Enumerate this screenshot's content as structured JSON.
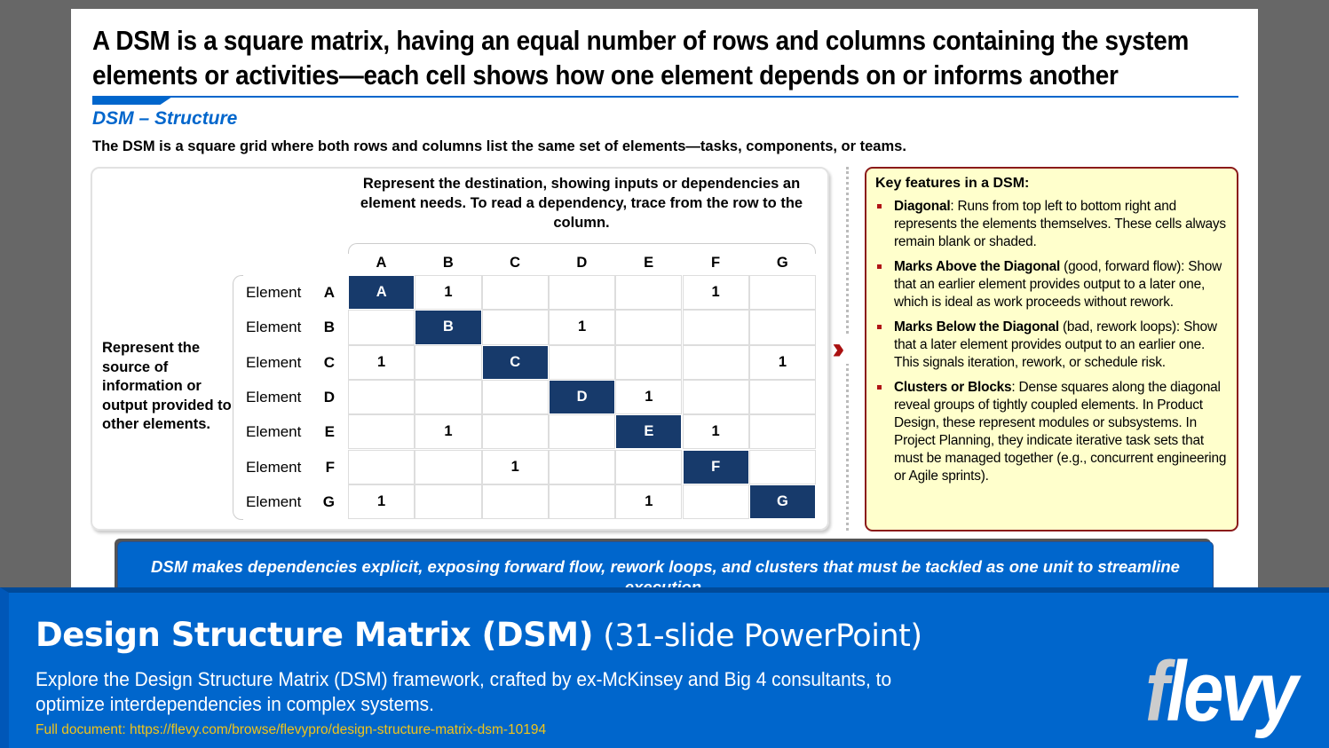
{
  "slide": {
    "title": "A DSM is a square matrix, having an equal number of rows and columns containing the system elements or activities—each cell shows how one element depends on or informs another",
    "subtitle": "DSM – Structure",
    "description": "The DSM is a square grid where both rows and columns list the same set of elements—tasks, components, or teams.",
    "destination_note": "Represent the destination, showing inputs or dependencies an element needs. To read a dependency, trace from the row to the column.",
    "source_note": "Represent the source of information or output provided to other elements.",
    "matrix": {
      "columns": [
        "A",
        "B",
        "C",
        "D",
        "E",
        "F",
        "G"
      ],
      "row_prefix": "Element",
      "rows": [
        {
          "label": "A",
          "cells": [
            "A",
            "1",
            "",
            "",
            "",
            "1",
            ""
          ]
        },
        {
          "label": "B",
          "cells": [
            "",
            "B",
            "",
            "1",
            "",
            "",
            ""
          ]
        },
        {
          "label": "C",
          "cells": [
            "1",
            "",
            "C",
            "",
            "",
            "",
            "1"
          ]
        },
        {
          "label": "D",
          "cells": [
            "",
            "",
            "",
            "D",
            "1",
            "",
            ""
          ]
        },
        {
          "label": "E",
          "cells": [
            "",
            "1",
            "",
            "",
            "E",
            "1",
            ""
          ]
        },
        {
          "label": "F",
          "cells": [
            "",
            "",
            "1",
            "",
            "",
            "F",
            ""
          ]
        },
        {
          "label": "G",
          "cells": [
            "1",
            "",
            "",
            "",
            "1",
            "",
            "G"
          ]
        }
      ]
    },
    "key_features": {
      "heading": "Key features in a DSM:",
      "items": [
        {
          "bold": "Diagonal",
          "text": ": Runs from top left to bottom right and represents the elements themselves. These cells always remain blank or shaded."
        },
        {
          "bold": "Marks Above the Diagonal",
          "text": " (good, forward flow): Show that an earlier element provides output to a later one, which is ideal as work proceeds without rework."
        },
        {
          "bold": "Marks Below the Diagonal",
          "text": " (bad, rework loops): Show that a later element provides output to an earlier one. This signals iteration, rework, or schedule risk."
        },
        {
          "bold": "Clusters or Blocks",
          "text": ": Dense squares along the diagonal reveal groups of tightly coupled elements. In Product Design, these represent modules or subsystems. In Project Planning, they indicate iterative task sets that must be managed together (e.g., concurrent engineering or Agile sprints)."
        }
      ]
    },
    "callout": "DSM makes dependencies explicit, exposing forward flow, rework loops, and clusters that must be tackled as one unit to streamline execution."
  },
  "banner": {
    "title": "Design Structure Matrix (DSM)",
    "title_suffix": "(31-slide PowerPoint)",
    "description": "Explore the Design Structure Matrix (DSM) framework, crafted by ex-McKinsey and Big 4 consultants, to optimize interdependencies in complex systems.",
    "link": "Full document: https://flevy.com/browse/flevypro/design-structure-matrix-dsm-10194",
    "logo": "flevy"
  },
  "colors": {
    "accent": "#0066cc",
    "diagonal": "#173a6b",
    "key_border": "#8b1a1a",
    "key_bg": "#ffffcc",
    "link": "#f0c419"
  }
}
